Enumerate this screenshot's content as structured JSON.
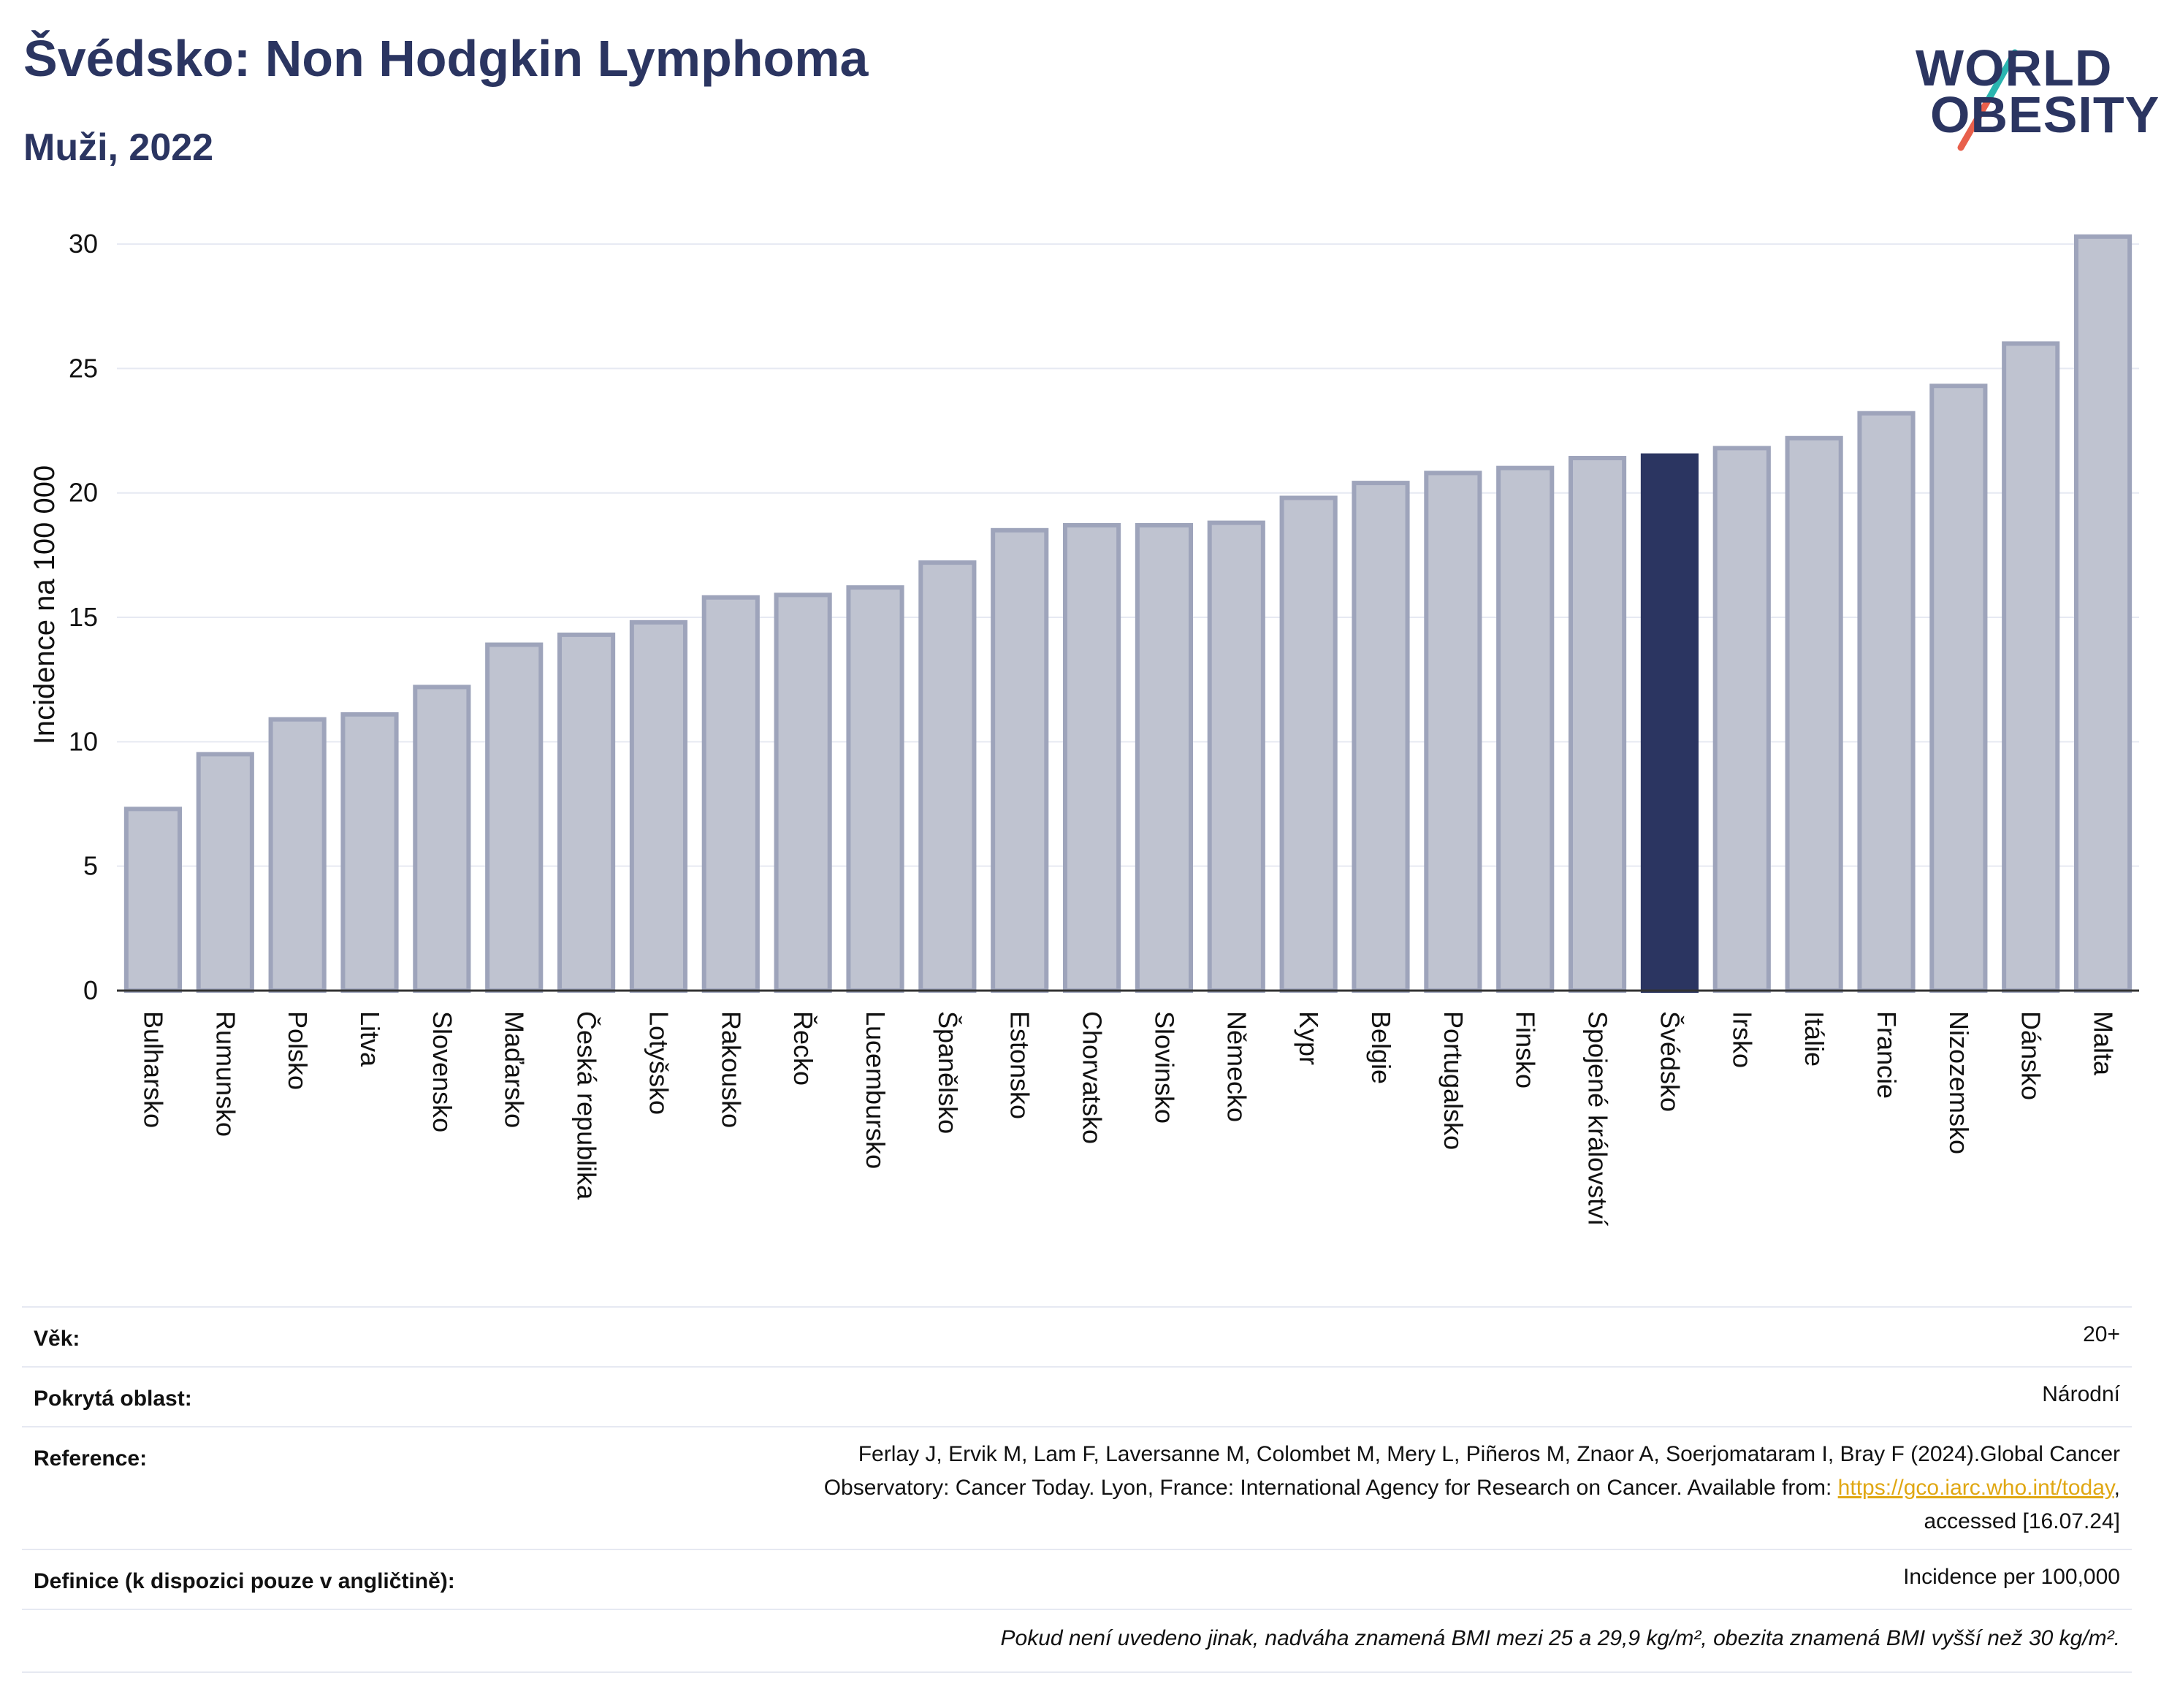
{
  "header": {
    "title": "Švédsko: Non Hodgkin Lymphoma",
    "subtitle": "Muži, 2022"
  },
  "logo": {
    "line1": "WORLD",
    "line2": "OBESITY",
    "colors": {
      "text": "#2b3561",
      "slash_top": "#2bb5b0",
      "slash_bottom": "#e8604c"
    }
  },
  "chart_data": {
    "type": "bar",
    "ylabel": "Incidence na 100 000",
    "ylim": [
      0,
      31
    ],
    "yticks": [
      0,
      5,
      10,
      15,
      20,
      25,
      30
    ],
    "grid": true,
    "highlight": "Švédsko",
    "colors": {
      "bar": "#bfc3d0",
      "bar_edge": "#9ea4bb",
      "highlight": "#2b3561",
      "grid": "#e6e9f2",
      "axis": "#333333"
    },
    "categories": [
      "Bulharsko",
      "Rumunsko",
      "Polsko",
      "Litva",
      "Slovensko",
      "Maďarsko",
      "Česká republika",
      "Lotyšsko",
      "Rakousko",
      "Řecko",
      "Lucembursko",
      "Španělsko",
      "Estonsko",
      "Chorvatsko",
      "Slovinsko",
      "Německo",
      "Kypr",
      "Belgie",
      "Portugalsko",
      "Finsko",
      "Spojené království",
      "Švédsko",
      "Irsko",
      "Itálie",
      "Francie",
      "Nizozemsko",
      "Dánsko",
      "Malta"
    ],
    "values": [
      7.3,
      9.5,
      10.9,
      11.1,
      12.2,
      13.9,
      14.3,
      14.8,
      15.8,
      15.9,
      16.2,
      17.2,
      18.5,
      18.7,
      18.7,
      18.8,
      19.8,
      20.4,
      20.8,
      21.0,
      21.4,
      21.5,
      21.8,
      22.2,
      23.2,
      24.3,
      26.0,
      30.3
    ]
  },
  "meta": {
    "age_label": "Věk:",
    "age_value": "20+",
    "area_label": "Pokrytá oblast:",
    "area_value": "Národní",
    "ref_label": "Reference:",
    "ref_line1": "Ferlay J, Ervik M, Lam F, Laversanne M, Colombet M, Mery L, Piñeros M, Znaor A, Soerjomataram I, Bray F (2024).Global Cancer",
    "ref_line2_pre": "Observatory: Cancer Today. Lyon, France: International Agency for Research on Cancer. Available from: ",
    "ref_link": "https://gco.iarc.who.int/today",
    "ref_line2_post": ",",
    "ref_line3": "accessed [16.07.24]",
    "def_label": "Definice (k dispozici pouze v angličtině):",
    "def_value": "Incidence per 100,000",
    "note": "Pokud není uvedeno jinak, nadváha znamená BMI mezi 25 a 29,9 kg/m², obezita znamená BMI vyšší než 30 kg/m²."
  }
}
